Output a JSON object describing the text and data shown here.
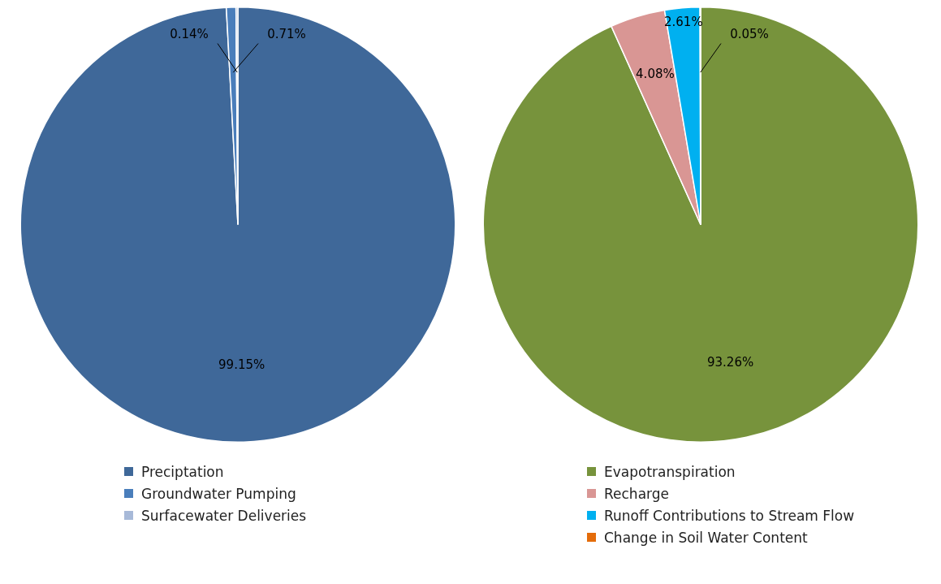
{
  "chart_data": [
    {
      "type": "pie",
      "categories": [
        "Preciptation",
        "Groundwater Pumping",
        "Surfacewater Deliveries"
      ],
      "values": [
        99.15,
        0.71,
        0.14
      ],
      "value_labels": [
        "99.15%",
        "0.71%",
        "0.14%"
      ],
      "colors": [
        "#3f6899",
        "#4a7ebb",
        "#a7b9d8"
      ],
      "legend": "bottom"
    },
    {
      "type": "pie",
      "categories": [
        "Evapotranspiration",
        "Recharge",
        "Runoff Contributions to Stream Flow",
        "Change in Soil Water Content"
      ],
      "values": [
        93.26,
        4.08,
        2.61,
        0.05
      ],
      "value_labels": [
        "93.26%",
        "4.08%",
        "2.61%",
        "0.05%"
      ],
      "colors": [
        "#77933c",
        "#d99694",
        "#00b0f0",
        "#e46c0a"
      ],
      "legend": "bottom"
    }
  ]
}
